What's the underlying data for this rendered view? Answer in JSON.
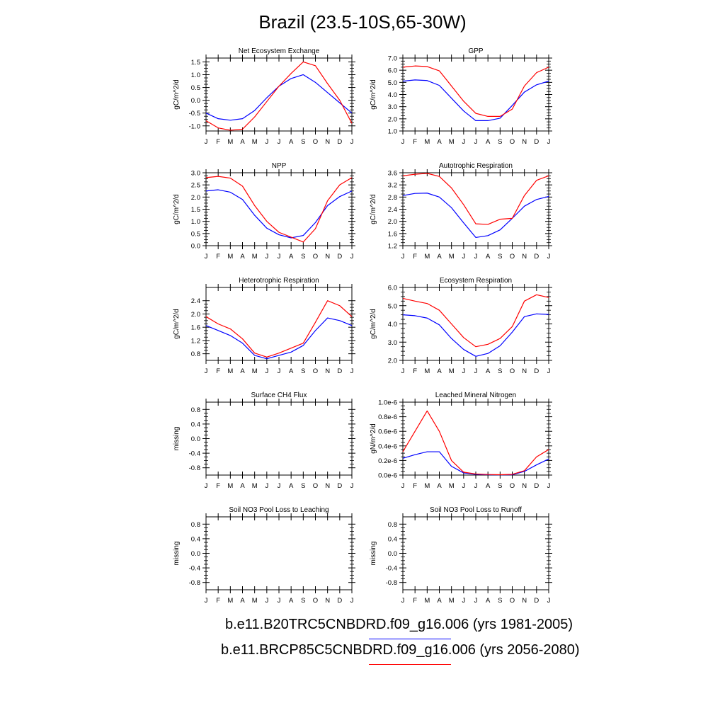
{
  "title": "Brazil (23.5-10S,65-30W)",
  "colors": {
    "series1": "#0000ff",
    "series2": "#ff0000",
    "axis": "#000000"
  },
  "legend": [
    {
      "label": "b.e11.B20TRC5CNBDRD.f09_g16.006 (yrs 1981-2005)",
      "color": "#0000ff"
    },
    {
      "label": "b.e11.BRCP85C5CNBDRD.f09_g16.006 (yrs 2056-2080)",
      "color": "#ff0000"
    }
  ],
  "chart_data": [
    {
      "type": "line",
      "title": "Net Ecosystem Exchange",
      "ylabel": "gC/m^2/d",
      "categories": [
        "J",
        "F",
        "M",
        "A",
        "M",
        "J",
        "J",
        "A",
        "S",
        "O",
        "N",
        "D",
        "J"
      ],
      "ylim": [
        -1.2,
        1.65
      ],
      "yticks": [
        -1.0,
        -0.5,
        0.0,
        0.5,
        1.0,
        1.5
      ],
      "ytick_labels": [
        "-1.0",
        "-0.5",
        "0.0",
        "0.5",
        "1.0",
        "1.5"
      ],
      "series": [
        {
          "values": [
            -0.5,
            -0.72,
            -0.78,
            -0.72,
            -0.4,
            0.1,
            0.55,
            0.85,
            1.0,
            0.7,
            0.3,
            -0.1,
            -0.5
          ]
        },
        {
          "values": [
            -0.8,
            -1.08,
            -1.17,
            -1.13,
            -0.65,
            -0.05,
            0.55,
            1.05,
            1.5,
            1.35,
            0.65,
            0.0,
            -0.9
          ]
        }
      ]
    },
    {
      "type": "line",
      "title": "GPP",
      "ylabel": "gC/m^2/d",
      "categories": [
        "J",
        "F",
        "M",
        "A",
        "M",
        "J",
        "J",
        "A",
        "S",
        "O",
        "N",
        "D",
        "J"
      ],
      "ylim": [
        1.0,
        7.0
      ],
      "yticks": [
        1.0,
        2.0,
        3.0,
        4.0,
        5.0,
        6.0,
        7.0
      ],
      "ytick_labels": [
        "1.0",
        "2.0",
        "3.0",
        "4.0",
        "5.0",
        "6.0",
        "7.0"
      ],
      "series": [
        {
          "values": [
            5.1,
            5.2,
            5.15,
            4.75,
            3.7,
            2.65,
            1.85,
            1.85,
            2.05,
            3.1,
            4.2,
            4.8,
            5.1
          ]
        },
        {
          "values": [
            6.25,
            6.35,
            6.3,
            5.95,
            4.7,
            3.45,
            2.45,
            2.2,
            2.2,
            2.8,
            4.7,
            5.8,
            6.25
          ]
        }
      ]
    },
    {
      "type": "line",
      "title": "NPP",
      "ylabel": "gC/m^2/d",
      "categories": [
        "J",
        "F",
        "M",
        "A",
        "M",
        "J",
        "J",
        "A",
        "S",
        "O",
        "N",
        "D",
        "J"
      ],
      "ylim": [
        0.0,
        3.0
      ],
      "yticks": [
        0.0,
        0.5,
        1.0,
        1.5,
        2.0,
        2.5,
        3.0
      ],
      "ytick_labels": [
        "0.0",
        "0.5",
        "1.0",
        "1.5",
        "2.0",
        "2.5",
        "3.0"
      ],
      "series": [
        {
          "values": [
            2.25,
            2.3,
            2.2,
            1.9,
            1.25,
            0.72,
            0.45,
            0.32,
            0.42,
            0.95,
            1.65,
            2.02,
            2.25
          ]
        },
        {
          "values": [
            2.8,
            2.85,
            2.78,
            2.45,
            1.65,
            1.0,
            0.55,
            0.35,
            0.15,
            0.7,
            1.85,
            2.5,
            2.8
          ]
        }
      ]
    },
    {
      "type": "line",
      "title": "Autotrophic Respiration",
      "ylabel": "gC/m^2/d",
      "categories": [
        "J",
        "F",
        "M",
        "A",
        "M",
        "J",
        "J",
        "A",
        "S",
        "O",
        "N",
        "D",
        "J"
      ],
      "ylim": [
        1.2,
        3.6
      ],
      "yticks": [
        1.2,
        1.6,
        2.0,
        2.4,
        2.8,
        3.2,
        3.6
      ],
      "ytick_labels": [
        "1.2",
        "1.6",
        "2.0",
        "2.4",
        "2.8",
        "3.2",
        "3.6"
      ],
      "series": [
        {
          "values": [
            2.85,
            2.92,
            2.93,
            2.8,
            2.45,
            1.95,
            1.47,
            1.53,
            1.72,
            2.1,
            2.5,
            2.72,
            2.82
          ]
        },
        {
          "values": [
            3.5,
            3.55,
            3.58,
            3.48,
            3.1,
            2.55,
            1.92,
            1.9,
            2.07,
            2.1,
            2.85,
            3.35,
            3.5
          ]
        }
      ]
    },
    {
      "type": "line",
      "title": "Heterotrophic Respiration",
      "ylabel": "gC/m^2/d",
      "categories": [
        "J",
        "F",
        "M",
        "A",
        "M",
        "J",
        "J",
        "A",
        "S",
        "O",
        "N",
        "D",
        "J"
      ],
      "ylim": [
        0.6,
        2.8
      ],
      "yticks": [
        0.8,
        1.2,
        1.6,
        2.0,
        2.4
      ],
      "ytick_labels": [
        "0.8",
        "1.2",
        "1.6",
        "2.0",
        "2.4"
      ],
      "series": [
        {
          "values": [
            1.65,
            1.5,
            1.35,
            1.12,
            0.75,
            0.65,
            0.75,
            0.85,
            1.05,
            1.5,
            1.88,
            1.8,
            1.65
          ]
        },
        {
          "values": [
            1.92,
            1.7,
            1.55,
            1.25,
            0.82,
            0.7,
            0.82,
            0.97,
            1.12,
            1.75,
            2.4,
            2.25,
            1.92
          ]
        }
      ]
    },
    {
      "type": "line",
      "title": "Ecosystem Respiration",
      "ylabel": "gC/m^2/d",
      "categories": [
        "J",
        "F",
        "M",
        "A",
        "M",
        "J",
        "J",
        "A",
        "S",
        "O",
        "N",
        "D",
        "J"
      ],
      "ylim": [
        2.0,
        6.0
      ],
      "yticks": [
        2.0,
        3.0,
        4.0,
        5.0,
        6.0
      ],
      "ytick_labels": [
        "2.0",
        "3.0",
        "4.0",
        "5.0",
        "6.0"
      ],
      "series": [
        {
          "values": [
            4.5,
            4.45,
            4.32,
            3.95,
            3.2,
            2.6,
            2.22,
            2.38,
            2.8,
            3.55,
            4.4,
            4.55,
            4.52
          ]
        },
        {
          "values": [
            5.4,
            5.25,
            5.12,
            4.75,
            4.0,
            3.25,
            2.75,
            2.88,
            3.2,
            3.85,
            5.25,
            5.6,
            5.45
          ]
        }
      ]
    },
    {
      "type": "line",
      "title": "Surface CH4 Flux",
      "ylabel": "missing",
      "categories": [
        "J",
        "F",
        "M",
        "A",
        "M",
        "J",
        "J",
        "A",
        "S",
        "O",
        "N",
        "D",
        "J"
      ],
      "ylim": [
        -1.0,
        1.0
      ],
      "yticks": [
        -0.8,
        -0.4,
        0.0,
        0.4,
        0.8
      ],
      "ytick_labels": [
        "-0.8",
        "-0.4",
        "0.0",
        "0.4",
        "0.8"
      ],
      "series": []
    },
    {
      "type": "line",
      "title": "Leached Mineral Nitrogen",
      "ylabel": "gN/m^2/d",
      "categories": [
        "J",
        "F",
        "M",
        "A",
        "M",
        "J",
        "J",
        "A",
        "S",
        "O",
        "N",
        "D",
        "J"
      ],
      "ylim": [
        0.0,
        1e-06
      ],
      "yticks": [
        0.0,
        2e-07,
        4e-07,
        6e-07,
        8e-07,
        1e-06
      ],
      "ytick_labels": [
        "0.0e-6",
        "0.2e-6",
        "0.4e-6",
        "0.6e-6",
        "0.8e-6",
        "1.0e-6"
      ],
      "series": [
        {
          "values": [
            2.3e-07,
            2.8e-07,
            3.2e-07,
            3.2e-07,
            1.2e-07,
            3e-08,
            1e-08,
            5e-09,
            3e-09,
            5e-09,
            5e-08,
            1.4e-07,
            2.2e-07
          ]
        },
        {
          "values": [
            3.2e-07,
            6e-07,
            8.8e-07,
            6e-07,
            2e-07,
            4e-08,
            1.5e-08,
            8e-09,
            5e-09,
            1e-08,
            6e-08,
            2.5e-07,
            3.5e-07
          ]
        }
      ]
    },
    {
      "type": "line",
      "title": "Soil NO3 Pool Loss to Leaching",
      "ylabel": "missing",
      "categories": [
        "J",
        "F",
        "M",
        "A",
        "M",
        "J",
        "J",
        "A",
        "S",
        "O",
        "N",
        "D",
        "J"
      ],
      "ylim": [
        -1.0,
        1.0
      ],
      "yticks": [
        -0.8,
        -0.4,
        0.0,
        0.4,
        0.8
      ],
      "ytick_labels": [
        "-0.8",
        "-0.4",
        "0.0",
        "0.4",
        "0.8"
      ],
      "series": []
    },
    {
      "type": "line",
      "title": "Soil NO3 Pool Loss to Runoff",
      "ylabel": "missing",
      "categories": [
        "J",
        "F",
        "M",
        "A",
        "M",
        "J",
        "J",
        "A",
        "S",
        "O",
        "N",
        "D",
        "J"
      ],
      "ylim": [
        -1.0,
        1.0
      ],
      "yticks": [
        -0.8,
        -0.4,
        0.0,
        0.4,
        0.8
      ],
      "ytick_labels": [
        "-0.8",
        "-0.4",
        "0.0",
        "0.4",
        "0.8"
      ],
      "series": []
    }
  ]
}
